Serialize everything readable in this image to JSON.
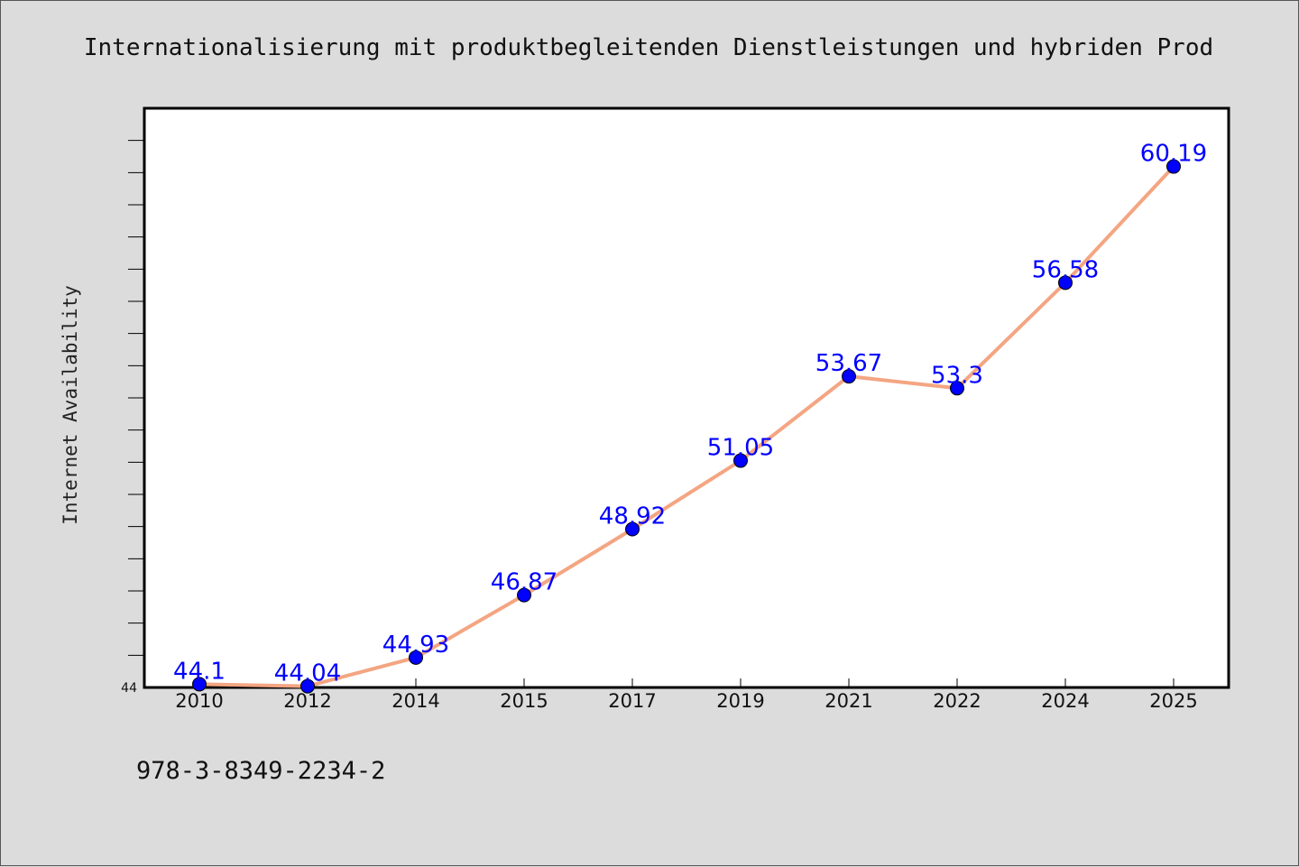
{
  "chart_data": {
    "type": "line",
    "title": "Internationalisierung mit produktbegleitenden Dienstleistungen und hybriden Prod",
    "xlabel": "",
    "ylabel": "Internet Availability",
    "categories": [
      "2010",
      "2012",
      "2014",
      "2015",
      "2017",
      "2019",
      "2021",
      "2022",
      "2024",
      "2025"
    ],
    "series": [
      {
        "values": [
          44.1,
          44.04,
          44.93,
          46.87,
          48.92,
          51.05,
          53.67,
          53.3,
          56.58,
          60.19
        ],
        "value_labels": [
          "44.1",
          "44.04",
          "44.93",
          "46.87",
          "48.92",
          "51.05",
          "53.67",
          "53.3",
          "56.58",
          "60.19"
        ]
      }
    ],
    "ylim": [
      44,
      62
    ],
    "y_tick_labels": [
      "44"
    ],
    "y_minor_tick_step": 1,
    "grid": false,
    "colors": {
      "line": "#f4a582",
      "marker": "#0000ff",
      "label": "#0000ff"
    }
  },
  "footer": {
    "isbn": "978-3-8349-2234-2"
  }
}
